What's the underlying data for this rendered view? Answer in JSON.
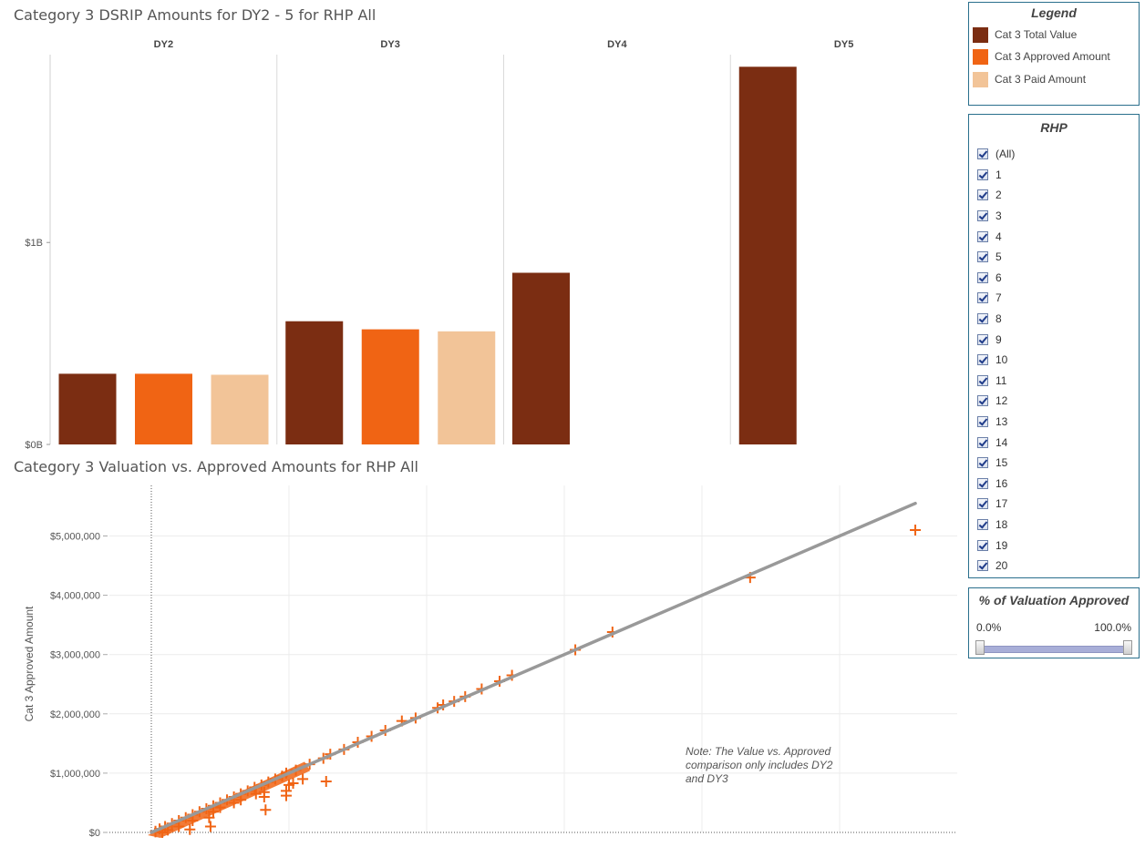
{
  "bar_chart": {
    "title": "Category 3 DSRIP Amounts for DY2 - 5 for RHP All"
  },
  "scatter_chart": {
    "title": "Category 3 Valuation vs. Approved Amounts for RHP All",
    "note": "Note: The Value vs. Approved comparison only includes DY2 and DY3",
    "note_lines": [
      "Note: The Value vs. Approved",
      "comparison only includes DY2",
      "and DY3"
    ]
  },
  "legend": {
    "title": "Legend",
    "items": [
      {
        "label": "Cat 3 Total Value",
        "color": "#7b2d12"
      },
      {
        "label": "Cat 3 Approved Amount",
        "color": "#f06414"
      },
      {
        "label": "Cat 3 Paid Amount",
        "color": "#f2c498"
      }
    ]
  },
  "rhp_filter": {
    "title": "RHP",
    "items": [
      "(All)",
      "1",
      "2",
      "3",
      "4",
      "5",
      "6",
      "7",
      "8",
      "9",
      "10",
      "11",
      "12",
      "13",
      "14",
      "15",
      "16",
      "17",
      "18",
      "19",
      "20"
    ]
  },
  "pct_filter": {
    "title": "% of Valuation Approved",
    "min_label": "0.0%",
    "max_label": "100.0%",
    "range": [
      0,
      100
    ]
  },
  "chart_data": [
    {
      "type": "bar",
      "title": "Category 3 DSRIP Amounts for DY2 - 5 for RHP All",
      "panels": [
        "DY2",
        "DY3",
        "DY4",
        "DY5"
      ],
      "series": [
        {
          "name": "Cat 3 Total Value",
          "values": [
            0.35,
            0.61,
            0.85,
            1.87
          ],
          "color": "#7b2d12"
        },
        {
          "name": "Cat 3 Approved Amount",
          "values": [
            0.35,
            0.57,
            null,
            null
          ],
          "color": "#f06414"
        },
        {
          "name": "Cat 3 Paid Amount",
          "values": [
            0.345,
            0.56,
            null,
            null
          ],
          "color": "#f2c498"
        }
      ],
      "units": "billions USD",
      "ylim": [
        0,
        1.93
      ],
      "yticks": [
        {
          "value": 0,
          "label": "$0B"
        },
        {
          "value": 1,
          "label": "$1B"
        }
      ],
      "legend_position": "right"
    },
    {
      "type": "scatter",
      "title": "Category 3 Valuation vs. Approved Amounts for RHP All",
      "ylabel": "Cat 3 Approved Amount",
      "xlabel": "",
      "ylim": [
        0,
        5400000
      ],
      "xlim": [
        -600000,
        5800000
      ],
      "yticks": [
        {
          "value": 0,
          "label": "$0"
        },
        {
          "value": 1000000,
          "label": "$1,000,000"
        },
        {
          "value": 2000000,
          "label": "$2,000,000"
        },
        {
          "value": 3000000,
          "label": "$3,000,000"
        },
        {
          "value": 4000000,
          "label": "$4,000,000"
        },
        {
          "value": 5000000,
          "label": "$5,000,000"
        }
      ],
      "xgrid": [
        0,
        1000000,
        2000000,
        3000000,
        4000000,
        5000000
      ],
      "trend_line": {
        "from": [
          0,
          0
        ],
        "to": [
          5550000,
          5550000
        ],
        "color": "#999999"
      },
      "marker_color": "#f06414",
      "points": [
        [
          5550000,
          5100000
        ],
        [
          4350000,
          4300000
        ],
        [
          3350000,
          3380000
        ],
        [
          3080000,
          3080000
        ],
        [
          2620000,
          2650000
        ],
        [
          2530000,
          2550000
        ],
        [
          2400000,
          2420000
        ],
        [
          2280000,
          2290000
        ],
        [
          2200000,
          2210000
        ],
        [
          2120000,
          2150000
        ],
        [
          2080000,
          2100000
        ],
        [
          1920000,
          1930000
        ],
        [
          1820000,
          1880000
        ],
        [
          1700000,
          1720000
        ],
        [
          1600000,
          1620000
        ],
        [
          1500000,
          1520000
        ],
        [
          1400000,
          1400000
        ],
        [
          1300000,
          1320000
        ],
        [
          1250000,
          1250000
        ],
        [
          1150000,
          1150000
        ],
        [
          1050000,
          1050000
        ],
        [
          980000,
          1000000
        ],
        [
          950000,
          950000
        ],
        [
          900000,
          900000
        ],
        [
          850000,
          850000
        ],
        [
          800000,
          800000
        ],
        [
          750000,
          760000
        ],
        [
          700000,
          700000
        ],
        [
          650000,
          650000
        ],
        [
          600000,
          600000
        ],
        [
          550000,
          550000
        ],
        [
          500000,
          500000
        ],
        [
          450000,
          450000
        ],
        [
          400000,
          400000
        ],
        [
          350000,
          350000
        ],
        [
          300000,
          300000
        ],
        [
          250000,
          250000
        ],
        [
          200000,
          200000
        ],
        [
          150000,
          150000
        ],
        [
          100000,
          100000
        ],
        [
          60000,
          60000
        ],
        [
          30000,
          20000
        ],
        [
          1270000,
          860000
        ],
        [
          1100000,
          900000
        ],
        [
          1030000,
          830000
        ],
        [
          1000000,
          800000
        ],
        [
          980000,
          700000
        ],
        [
          980000,
          620000
        ],
        [
          820000,
          680000
        ],
        [
          820000,
          600000
        ],
        [
          830000,
          380000
        ],
        [
          760000,
          650000
        ],
        [
          650000,
          550000
        ],
        [
          600000,
          500000
        ],
        [
          500000,
          420000
        ],
        [
          450000,
          350000
        ],
        [
          420000,
          250000
        ],
        [
          430000,
          100000
        ],
        [
          300000,
          200000
        ],
        [
          200000,
          100000
        ],
        [
          280000,
          50000
        ],
        [
          120000,
          40000
        ],
        [
          80000,
          0
        ],
        [
          30000,
          10000
        ]
      ]
    }
  ]
}
